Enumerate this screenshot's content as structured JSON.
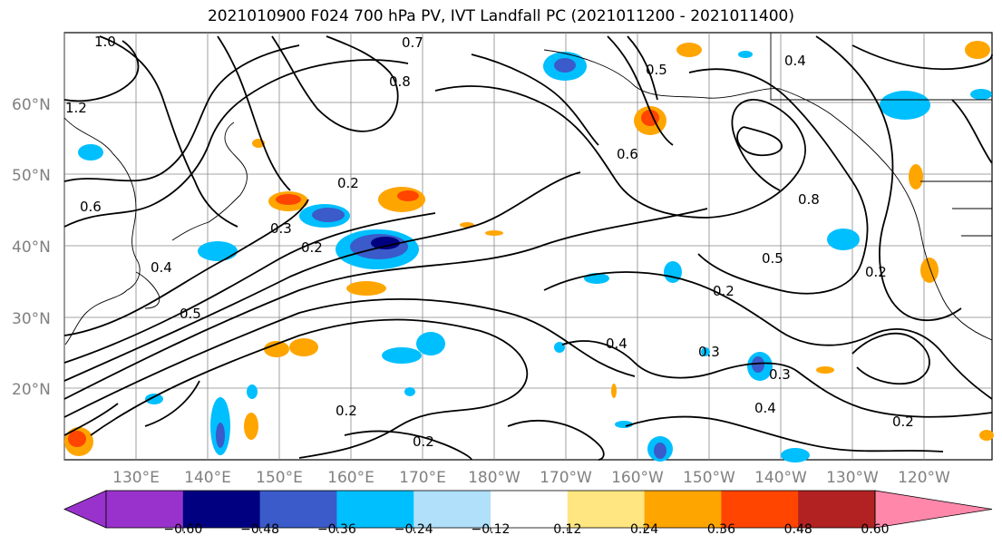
{
  "title": "2021010900 F024 700 hPa PV, IVT Landfall PC (2021011200 - 2021011400)",
  "map": {
    "lat_labels": [
      "60°N",
      "50°N",
      "40°N",
      "30°N",
      "20°N"
    ],
    "lon_labels": [
      "130°E",
      "140°E",
      "150°E",
      "160°E",
      "170°E",
      "180°W",
      "170°W",
      "160°W",
      "150°W",
      "140°W",
      "130°W",
      "120°W"
    ],
    "contour_labels": [
      "1.0",
      "1.2",
      "0.7",
      "0.6",
      "0.5",
      "0.4",
      "0.3",
      "0.2",
      "0.8",
      "0.5",
      "0.3",
      "0.2",
      "0.2",
      "0.2",
      "0.4",
      "0.3",
      "0.2",
      "0.5",
      "0.4",
      "0.2",
      "0.8",
      "0.6",
      "0.2",
      "0.4"
    ]
  },
  "colorbar": {
    "colors": [
      "#9932cc",
      "#000080",
      "#3a5bc9",
      "#00bfff",
      "#b0e0fa",
      "#ffffff",
      "#ffe680",
      "#ffa500",
      "#ff4500",
      "#b22222",
      "#ff88aa"
    ],
    "tick_labels": [
      "−0.60",
      "−0.48",
      "−0.36",
      "−0.24",
      "−0.12",
      "0.12",
      "0.24",
      "0.36",
      "0.48",
      "0.60"
    ]
  }
}
